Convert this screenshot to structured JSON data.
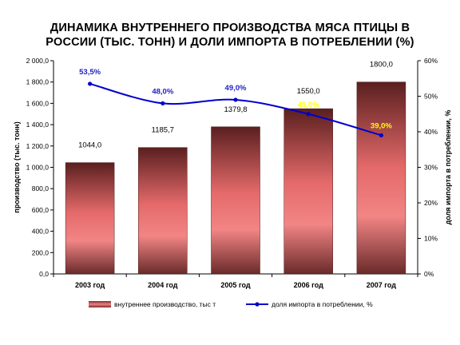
{
  "title_lines": [
    "ДИНАМИКА ВНУТРЕННЕГО ПРОИЗВОДСТВА МЯСА ПТИЦЫ В",
    "РОССИИ (ТЫС. ТОНН) И ДОЛИ ИМПОРТА В ПОТРЕБЛЕНИИ (%)"
  ],
  "chart_data": {
    "type": "bar",
    "title": "ДИНАМИКА ВНУТРЕННЕГО ПРОИЗВОДСТВА МЯСА ПТИЦЫ В РОССИИ (ТЫС. ТОНН) И ДОЛИ ИМПОРТА В ПОТРЕБЛЕНИИ (%)",
    "categories": [
      "2003 год",
      "2004 год",
      "2005 год",
      "2006 год",
      "2007 год"
    ],
    "series": [
      {
        "name": "внутреннее производство, тыс т",
        "kind": "bar",
        "axis": "left",
        "values": [
          1044.0,
          1185.7,
          1379.8,
          1550.0,
          1800.0
        ],
        "labels": [
          "1044,0",
          "1185,7",
          "1379,8",
          "1550,0",
          "1800,0"
        ],
        "color": "#8b3a3a"
      },
      {
        "name": "доля импорта в потреблении, %",
        "kind": "line",
        "axis": "right",
        "values": [
          53.5,
          48.0,
          49.0,
          45.0,
          39.0
        ],
        "labels": [
          "53,5%",
          "48,0%",
          "49,0%",
          "45,0%",
          "39,0%"
        ],
        "label_colors": [
          "#1f1fbf",
          "#1f1fbf",
          "#1f1fbf",
          "#ffff00",
          "#ffff00"
        ],
        "color": "#0000cc"
      }
    ],
    "ylabel": "производство (тыс. тонн)",
    "y2label": "доля импорта в потреблении, %",
    "ylim": [
      0,
      2000
    ],
    "y2lim": [
      0,
      60
    ],
    "yticks": [
      "0,0",
      "200,0",
      "400,0",
      "600,0",
      "800,0",
      "1 000,0",
      "1 200,0",
      "1 400,0",
      "1 600,0",
      "1 800,0",
      "2 000,0"
    ],
    "y2ticks": [
      "0%",
      "10%",
      "20%",
      "30%",
      "40%",
      "50%",
      "60%"
    ],
    "grid": false,
    "legend_position": "bottom"
  }
}
